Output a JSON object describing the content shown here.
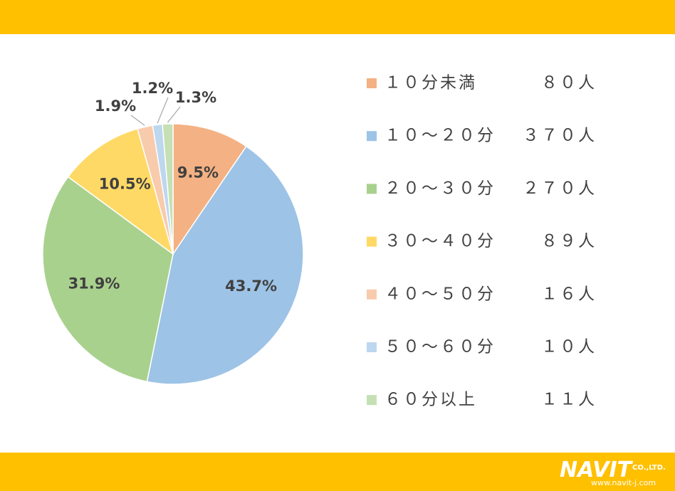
{
  "chart_data": {
    "type": "pie",
    "categories": [
      "１０分未満",
      "１０～２０分",
      "２０～３０分",
      "３０～４０分",
      "４０～５０分",
      "５０～６０分",
      "６０分以上"
    ],
    "count_labels": [
      "８０人",
      "３７０人",
      "２７０人",
      "８９人",
      "１６人",
      "１０人",
      "１１人"
    ],
    "values": [
      9.5,
      43.7,
      31.9,
      10.5,
      1.9,
      1.2,
      1.3
    ],
    "value_labels": [
      "9.5%",
      "43.7%",
      "31.9%",
      "10.5%",
      "1.9%",
      "1.2%",
      "1.3%"
    ],
    "colors": [
      "#f4b183",
      "#9dc3e6",
      "#a9d18e",
      "#ffd966",
      "#f8cbad",
      "#bdd7ee",
      "#c5e0b4"
    ],
    "legend": "right"
  },
  "footer": {
    "logo": "NAVIT",
    "company": "CO.,LTD.",
    "url": "www.navit-j.com"
  }
}
